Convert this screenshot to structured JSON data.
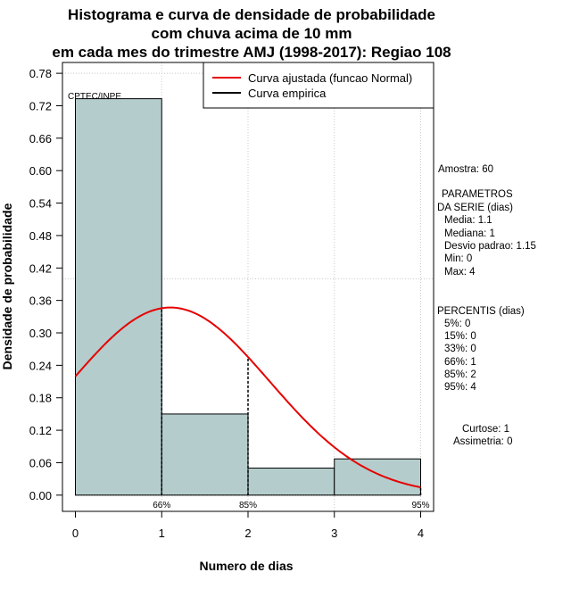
{
  "chart_data": {
    "type": "bar",
    "title_lines": [
      "Histograma e curva de densidade de probabilidade",
      "com chuva acima de 10 mm",
      "em cada mes do trimestre AMJ (1998-2017): Regiao 108"
    ],
    "xlabel": "Numero de dias",
    "ylabel": "Densidade de probabilidade",
    "xlim": [
      -0.15,
      4.15
    ],
    "ylim": [
      -0.03,
      0.8
    ],
    "x_ticks": [
      "0",
      "1",
      "2",
      "3",
      "4"
    ],
    "y_ticks": [
      "0.00",
      "0.06",
      "0.12",
      "0.18",
      "0.24",
      "0.30",
      "0.36",
      "0.42",
      "0.48",
      "0.54",
      "0.60",
      "0.66",
      "0.72",
      "0.78"
    ],
    "grid_x": [
      1,
      2,
      3,
      4
    ],
    "grid_y": [
      0.4,
      0.78
    ],
    "bars": [
      {
        "x0": 0,
        "x1": 1,
        "value": 0.733
      },
      {
        "x0": 1,
        "x1": 2,
        "value": 0.15
      },
      {
        "x0": 2,
        "x1": 3,
        "value": 0.05
      },
      {
        "x0": 3,
        "x1": 4,
        "value": 0.067
      }
    ],
    "bar_color": "#b4cccc",
    "normal_curve": {
      "mean": 1.1,
      "sd": 1.15,
      "x_from": 0,
      "x_to": 4,
      "color": "#e60000"
    },
    "percentile_lines": [
      {
        "x": 1,
        "label": "66%"
      },
      {
        "x": 2,
        "label": "85%"
      },
      {
        "x": 4,
        "label": "95%"
      }
    ],
    "legend": {
      "position": "top-right",
      "entries": [
        {
          "label": "Curva ajustada (funcao Normal)",
          "color": "#e60000"
        },
        {
          "label": "Curva empirica",
          "color": "#000000"
        }
      ]
    },
    "source_label": "CPTEC/INPE"
  },
  "stats": {
    "sample": "Amostra: 60",
    "params_title_1": "PARAMETROS",
    "params_title_2": "DA SERIE (dias)",
    "params": [
      "Media: 1.1",
      "Mediana: 1",
      "Desvio padrao: 1.15",
      "Min: 0",
      "Max: 4"
    ],
    "percentiles_title": "PERCENTIS (dias)",
    "percentiles": [
      "5%: 0",
      "15%: 0",
      "33%: 0",
      "66%: 1",
      "85%: 2",
      "95%: 4"
    ],
    "kurtosis": "Curtose: 1",
    "skewness": "Assimetria: 0"
  }
}
